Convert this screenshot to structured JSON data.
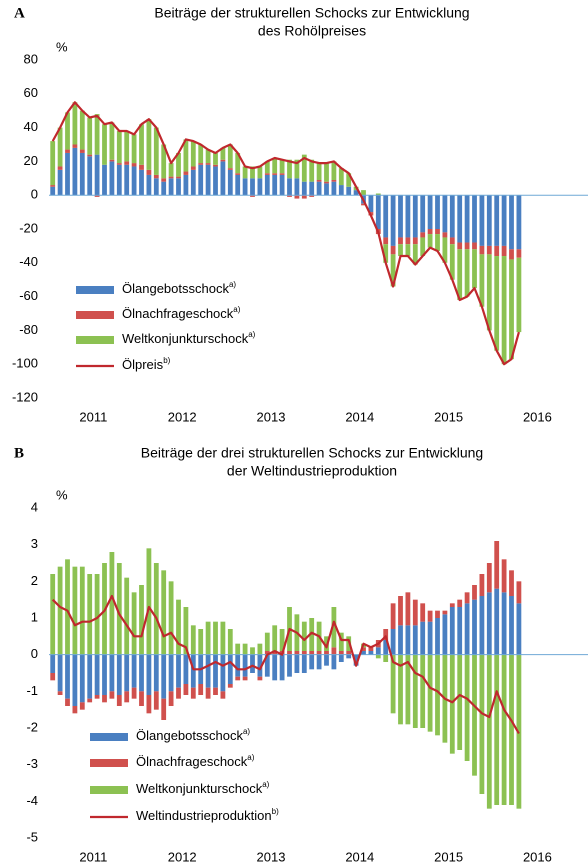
{
  "chart_data": [
    {
      "type": "bar",
      "panel": "A",
      "title": [
        "Beiträge der strukturellen Schocks zur Entwicklung",
        "des Rohölpreises"
      ],
      "y_unit": "%",
      "x_labels": [
        "2011",
        "2012",
        "2013",
        "2014",
        "2015",
        "2016"
      ],
      "ylim": [
        -120,
        80
      ],
      "yticks": [
        80,
        60,
        40,
        20,
        0,
        -20,
        -40,
        -60,
        -80,
        -100,
        -120
      ],
      "legend": "lower left",
      "series": [
        {
          "name": "Ölangebotsschock",
          "note": "a)",
          "type": "bar",
          "color": "#4a7fc1",
          "values": [
            5,
            15,
            25,
            28,
            25,
            23,
            24,
            18,
            20,
            18,
            18,
            17,
            15,
            12,
            10,
            8,
            10,
            10,
            12,
            15,
            18,
            18,
            17,
            20,
            15,
            12,
            10,
            10,
            10,
            12,
            12,
            12,
            10,
            10,
            8,
            8,
            8,
            7,
            8,
            6,
            5,
            3,
            -5,
            -10,
            -20,
            -25,
            -30,
            -25,
            -25,
            -25,
            -22,
            -20,
            -20,
            -22,
            -25,
            -28,
            -28,
            -28,
            -30,
            -30,
            -30,
            -30,
            -32,
            -32
          ]
        },
        {
          "name": "Ölnachfrageschock",
          "note": "a)",
          "type": "bar",
          "color": "#d0504d",
          "values": [
            1,
            2,
            2,
            2,
            2,
            1,
            -1,
            0,
            1,
            1,
            2,
            2,
            3,
            3,
            2,
            2,
            1,
            1,
            2,
            2,
            1,
            1,
            1,
            1,
            1,
            1,
            0,
            -1,
            0,
            1,
            1,
            1,
            -1,
            -2,
            -2,
            -1,
            1,
            1,
            1,
            0,
            0,
            0,
            -1,
            -2,
            -3,
            -4,
            -5,
            -4,
            -4,
            -4,
            -3,
            -3,
            -3,
            -3,
            -4,
            -4,
            -4,
            -4,
            -5,
            -5,
            -6,
            -6,
            -6,
            -5
          ]
        },
        {
          "name": "Weltkonjunkturschock",
          "note": "a)",
          "type": "bar",
          "color": "#8cc152",
          "values": [
            26,
            23,
            22,
            25,
            23,
            22,
            24,
            24,
            22,
            19,
            18,
            17,
            24,
            30,
            28,
            20,
            8,
            14,
            19,
            15,
            11,
            8,
            7,
            7,
            14,
            12,
            7,
            7,
            7,
            7,
            9,
            8,
            11,
            11,
            16,
            13,
            10,
            11,
            11,
            10,
            8,
            2,
            3,
            0,
            1,
            -11,
            -19,
            -7,
            -7,
            -12,
            -11,
            -8,
            -10,
            -15,
            -21,
            -30,
            -28,
            -23,
            -31,
            -45,
            -56,
            -64,
            -59,
            -44
          ]
        },
        {
          "name": "Ölpreis",
          "note": "b)",
          "type": "line",
          "color": "#c0282d",
          "values": [
            32,
            40,
            49,
            55,
            50,
            46,
            47,
            42,
            43,
            38,
            38,
            36,
            42,
            45,
            40,
            30,
            19,
            25,
            33,
            32,
            30,
            27,
            25,
            28,
            30,
            25,
            17,
            16,
            17,
            20,
            22,
            21,
            20,
            19,
            22,
            20,
            19,
            19,
            20,
            16,
            13,
            5,
            -3,
            -12,
            -22,
            -40,
            -54,
            -36,
            -36,
            -41,
            -36,
            -31,
            -33,
            -40,
            -50,
            -62,
            -60,
            -55,
            -66,
            -80,
            -92,
            -100,
            -97,
            -81
          ]
        }
      ]
    },
    {
      "type": "bar",
      "panel": "B",
      "title": [
        "Beiträge der drei strukturellen Schocks zur Entwicklung",
        "der Weltindustrieproduktion"
      ],
      "y_unit": "%",
      "x_labels": [
        "2011",
        "2012",
        "2013",
        "2014",
        "2015",
        "2016"
      ],
      "ylim": [
        -5,
        4
      ],
      "yticks": [
        4,
        3,
        2,
        1,
        0,
        -1,
        -2,
        -3,
        -4,
        -5
      ],
      "legend": "lower left",
      "series": [
        {
          "name": "Ölangebotsschock",
          "note": "a)",
          "type": "bar",
          "color": "#4a7fc1",
          "values": [
            -0.5,
            -1.0,
            -1.2,
            -1.4,
            -1.3,
            -1.2,
            -1.1,
            -1.1,
            -1.0,
            -1.1,
            -1.0,
            -0.9,
            -1.0,
            -1.1,
            -1.0,
            -1.2,
            -1.0,
            -0.9,
            -0.8,
            -0.9,
            -0.8,
            -0.9,
            -0.9,
            -1.0,
            -0.8,
            -0.6,
            -0.6,
            -0.5,
            -0.6,
            -0.6,
            -0.7,
            -0.7,
            -0.6,
            -0.5,
            -0.5,
            -0.4,
            -0.4,
            -0.3,
            -0.4,
            -0.2,
            -0.1,
            -0.3,
            0.1,
            0.1,
            0.2,
            0.4,
            0.7,
            0.8,
            0.8,
            0.8,
            0.9,
            0.9,
            1.0,
            1.1,
            1.3,
            1.3,
            1.4,
            1.5,
            1.6,
            1.7,
            1.8,
            1.7,
            1.6,
            1.4
          ]
        },
        {
          "name": "Ölnachfrageschock",
          "note": "a)",
          "type": "bar",
          "color": "#d0504d",
          "values": [
            -0.2,
            -0.1,
            -0.2,
            -0.2,
            -0.2,
            -0.1,
            -0.1,
            -0.2,
            -0.2,
            -0.3,
            -0.3,
            -0.3,
            -0.4,
            -0.5,
            -0.5,
            -0.6,
            -0.4,
            -0.3,
            -0.3,
            -0.3,
            -0.3,
            -0.3,
            -0.2,
            -0.2,
            -0.1,
            -0.1,
            -0.1,
            0,
            -0.1,
            0.1,
            0.1,
            0.1,
            0.1,
            0.1,
            0.1,
            0.1,
            0.1,
            0.1,
            0.2,
            0.1,
            0.1,
            0,
            0.1,
            0.1,
            0.2,
            0.3,
            0.7,
            0.8,
            0.9,
            0.7,
            0.5,
            0.3,
            0.2,
            0.1,
            0.1,
            0.2,
            0.3,
            0.4,
            0.6,
            0.8,
            1.3,
            0.9,
            0.7,
            0.6
          ]
        },
        {
          "name": "Weltkonjunkturschock",
          "note": "a)",
          "type": "bar",
          "color": "#8cc152",
          "values": [
            2.2,
            2.4,
            2.6,
            2.4,
            2.4,
            2.2,
            2.2,
            2.5,
            2.8,
            2.5,
            2.1,
            1.7,
            1.9,
            2.9,
            2.5,
            2.3,
            2.0,
            1.5,
            1.3,
            0.8,
            0.7,
            0.9,
            0.9,
            0.9,
            0.7,
            0.3,
            0.3,
            0.2,
            0.3,
            0.5,
            0.7,
            0.6,
            1.2,
            1.0,
            0.8,
            0.9,
            0.8,
            0.4,
            1.1,
            0.5,
            0.4,
            0,
            0.1,
            0,
            -0.1,
            -0.2,
            -1.6,
            -1.9,
            -1.9,
            -2.0,
            -2.0,
            -2.1,
            -2.2,
            -2.4,
            -2.7,
            -2.6,
            -2.9,
            -3.3,
            -3.8,
            -4.2,
            -4.1,
            -4.1,
            -4.1,
            -4.2
          ]
        },
        {
          "name": "Weltindustrieproduktion",
          "note": "b)",
          "type": "line",
          "color": "#c0282d",
          "values": [
            1.5,
            1.3,
            1.2,
            0.8,
            0.9,
            0.9,
            1.0,
            1.2,
            1.6,
            1.1,
            0.8,
            0.5,
            0.5,
            1.3,
            1.0,
            0.5,
            0.6,
            0.3,
            0.2,
            -0.4,
            -0.4,
            -0.3,
            -0.2,
            -0.3,
            -0.2,
            -0.4,
            -0.4,
            -0.3,
            -0.4,
            0,
            0.1,
            0,
            0.7,
            0.6,
            0.4,
            0.6,
            0.5,
            0.2,
            0.9,
            0.4,
            0.4,
            -0.3,
            0.3,
            0.2,
            0.3,
            0.5,
            -0.2,
            -0.3,
            -0.2,
            -0.5,
            -0.6,
            -0.9,
            -1.0,
            -1.2,
            -1.3,
            -1.1,
            -1.2,
            -1.4,
            -1.6,
            -1.7,
            -1.0,
            -1.5,
            -1.8,
            -2.15
          ]
        }
      ]
    }
  ]
}
